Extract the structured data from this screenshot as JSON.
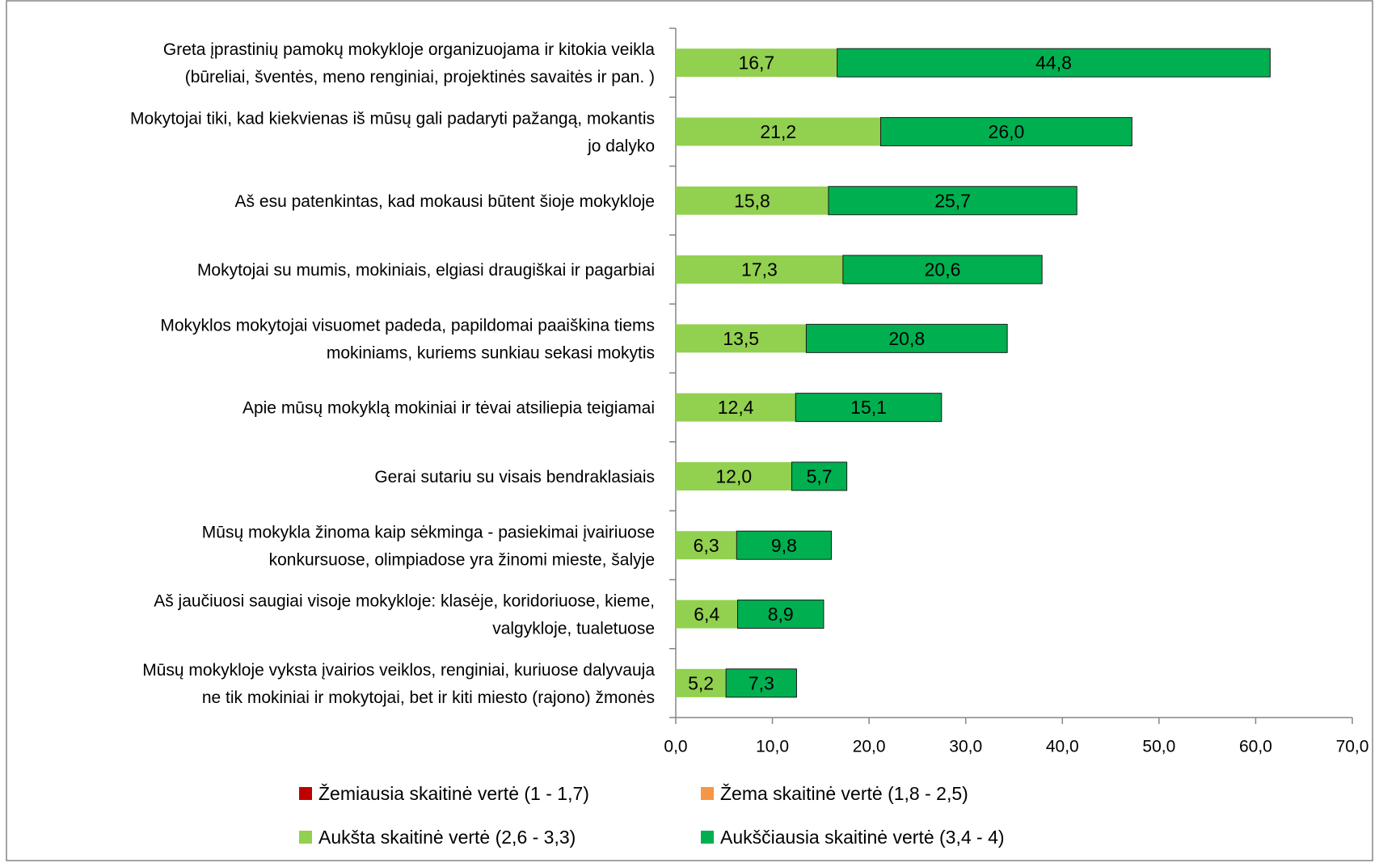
{
  "chart_data": {
    "type": "stacked-barh",
    "categories": [
      [
        "Greta įprastinių pamokų mokykloje organizuojama  ir kitokia veikla",
        "(būreliai, šventės, meno renginiai, projektinės savaitės ir pan. )"
      ],
      [
        "Mokytojai tiki, kad kiekvienas iš mūsų gali padaryti pažangą, mokantis",
        "jo dalyko"
      ],
      [
        "Aš esu patenkintas, kad mokausi būtent šioje mokykloje"
      ],
      [
        "Mokytojai su mumis, mokiniais, elgiasi draugiškai ir pagarbiai"
      ],
      [
        "Mokyklos mokytojai visuomet padeda, papildomai paaiškina tiems",
        "mokiniams, kuriems sunkiau sekasi mokytis"
      ],
      [
        "Apie mūsų mokyklą mokiniai ir tėvai atsiliepia teigiamai"
      ],
      [
        "Gerai sutariu su visais bendraklasiais"
      ],
      [
        "Mūsų mokykla žinoma kaip sėkminga - pasiekimai įvairiuose",
        "konkursuose, olimpiadose yra žinomi mieste, šalyje"
      ],
      [
        "Aš jaučiuosi saugiai visoje mokykloje: klasėje, koridoriuose, kieme,",
        "valgykloje, tualetuose"
      ],
      [
        "Mūsų mokykloje vyksta įvairios veiklos, renginiai, kuriuose dalyvauja",
        "ne tik mokiniai ir mokytojai, bet ir kiti miesto (rajono) žmonės"
      ]
    ],
    "series": [
      {
        "name": "Žemiausia skaitinė vertė (1 - 1,7)",
        "color": "#c00000",
        "values": [
          0,
          0,
          0,
          0,
          0,
          0,
          0,
          0,
          0,
          0
        ]
      },
      {
        "name": "Žema skaitinė vertė  (1,8 - 2,5)",
        "color": "#f79646",
        "values": [
          0,
          0,
          0,
          0,
          0,
          0,
          0,
          0,
          0,
          0
        ]
      },
      {
        "name": "Aukšta skaitinė vertė  (2,6 - 3,3)",
        "color": "#92d050",
        "values": [
          16.7,
          21.2,
          15.8,
          17.3,
          13.5,
          12.4,
          12.0,
          6.3,
          6.4,
          5.2
        ],
        "value_labels": [
          "16,7",
          "21,2",
          "15,8",
          "17,3",
          "13,5",
          "12,4",
          "12,0",
          "6,3",
          "6,4",
          "5,2"
        ]
      },
      {
        "name": "Aukščiausia skaitinė vertė  (3,4 - 4)",
        "color": "#00b050",
        "values": [
          44.8,
          26.0,
          25.7,
          20.6,
          20.8,
          15.1,
          5.7,
          9.8,
          8.9,
          7.3
        ],
        "value_labels": [
          "44,8",
          "26,0",
          "25,7",
          "20,6",
          "20,8",
          "15,1",
          "5,7",
          "9,8",
          "8,9",
          "7,3"
        ]
      }
    ],
    "xlim": [
      0,
      70
    ],
    "xticks": [
      {
        "value": 0,
        "label": "0,0"
      },
      {
        "value": 10,
        "label": "10,0"
      },
      {
        "value": 20,
        "label": "20,0"
      },
      {
        "value": 30,
        "label": "30,0"
      },
      {
        "value": 40,
        "label": "40,0"
      },
      {
        "value": 50,
        "label": "50,0"
      },
      {
        "value": 60,
        "label": "60,0"
      },
      {
        "value": 70,
        "label": "70,0"
      }
    ],
    "legend": "bottom"
  }
}
